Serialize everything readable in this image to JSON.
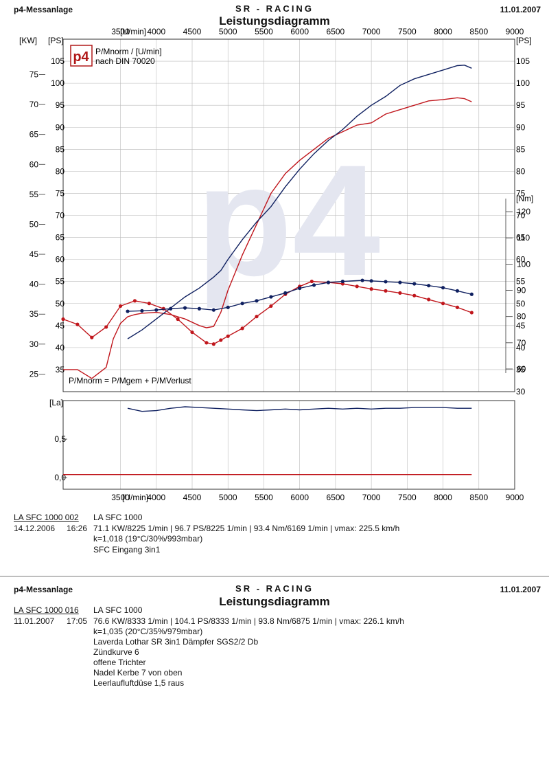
{
  "page": {
    "header_left": "p4-Messanlage",
    "header_center": "SR - RACING",
    "title": "Leistungsdiagramm",
    "date": "11.01.2007",
    "logo_text": "p4",
    "bg_watermark": "p4"
  },
  "chart_labels": {
    "unit_kw": "[KW]",
    "unit_ps_left": "[PS]",
    "unit_ps_right": "[PS]",
    "unit_rpm_top": "[U/min]",
    "unit_rpm_bottom": "[U/min]",
    "unit_nm": "[Nm]",
    "unit_la": "[La]",
    "legend_line1": "P/Mnorm / [U/min]",
    "legend_line2": "nach DIN 70020",
    "formula": "P/Mnorm = P/Mgem + P/MVerlust"
  },
  "runs": [
    {
      "id": "LA SFC 1000 002",
      "name": "LA SFC 1000",
      "date": "14.12.2006",
      "time": "16:26",
      "summary": "71.1 KW/8225 1/min  |  96.7 PS/8225 1/min  |  93.4 Nm/6169 1/min | vmax: 225.5 km/h",
      "k": "k=1,018 (19°C/30%/993mbar)",
      "notes": [
        "SFC Eingang 3in1"
      ]
    },
    {
      "id": "LA SFC 1000 016",
      "name": "LA SFC 1000",
      "date": "11.01.2007",
      "time": "17:05",
      "summary": "76.6 KW/8333 1/min  |  104.1 PS/8333 1/min  |  93.8 Nm/6875 1/min | vmax: 226.1 km/h",
      "k": "k=1,035 (20°C/35%/979mbar)",
      "notes": [
        "Laverda Lothar SR 3in1 Dämpfer SGS2/2 Db",
        "Zündkurve 6",
        "offene Trichter",
        "Nadel Kerbe 7 von oben",
        "Leerlaufluftdüse 1,5 raus"
      ]
    }
  ],
  "colors": {
    "run_2006": "#c0161c",
    "run_2007": "#0f2060",
    "grid": "#bbbbbb",
    "axis": "#333333"
  },
  "chart_data": [
    {
      "type": "line",
      "title": "Leistungsdiagramm",
      "xlabel": "[U/min]",
      "x_ticks": [
        3500,
        4000,
        4500,
        5000,
        5500,
        6000,
        6500,
        7000,
        7500,
        8000,
        8500,
        9000
      ],
      "xlim": [
        2700,
        9000
      ],
      "y_axes": {
        "kw": {
          "label": "[KW]",
          "ticks": [
            25,
            30,
            35,
            40,
            45,
            50,
            55,
            60,
            65,
            70,
            75
          ]
        },
        "ps": {
          "label": "[PS]",
          "ticks": [
            35,
            40,
            45,
            50,
            55,
            60,
            65,
            70,
            75,
            80,
            85,
            90,
            95,
            100,
            105
          ],
          "ylim": [
            30,
            110
          ]
        },
        "nm": {
          "label": "[Nm]",
          "ticks": [
            60,
            70,
            80,
            90,
            100,
            110,
            120
          ]
        }
      },
      "grid": true,
      "series": [
        {
          "name": "LA SFC 1000 002",
          "quantity": "power",
          "unit": "PS",
          "x": [
            2700,
            2900,
            3100,
            3300,
            3400,
            3500,
            3600,
            3700,
            3800,
            4000,
            4200,
            4400,
            4600,
            4700,
            4800,
            4900,
            5000,
            5200,
            5400,
            5600,
            5800,
            6000,
            6200,
            6400,
            6600,
            6800,
            7000,
            7200,
            7400,
            7600,
            7800,
            8000,
            8200,
            8300,
            8400
          ],
          "y": [
            35,
            35,
            33,
            35.5,
            42,
            45.5,
            47,
            47.5,
            47.8,
            48,
            47.5,
            46.5,
            45,
            44.5,
            44.8,
            48,
            53,
            61,
            68,
            75,
            79.5,
            82.5,
            85,
            87.5,
            89,
            90.5,
            91,
            93,
            94,
            95,
            96,
            96.3,
            96.7,
            96.5,
            95.8
          ]
        },
        {
          "name": "LA SFC 1000 016",
          "quantity": "power",
          "unit": "PS",
          "x": [
            3600,
            3800,
            4000,
            4200,
            4400,
            4600,
            4800,
            4900,
            5000,
            5200,
            5400,
            5600,
            5800,
            6000,
            6200,
            6400,
            6600,
            6800,
            7000,
            7200,
            7400,
            7600,
            7800,
            8000,
            8200,
            8300,
            8400
          ],
          "y": [
            42,
            44,
            46.5,
            49,
            51.5,
            53.5,
            56,
            57.5,
            60,
            64.5,
            68.5,
            72,
            76.5,
            80.5,
            84,
            87,
            89.5,
            92.5,
            95,
            97,
            99.5,
            101,
            102,
            103,
            104,
            104.1,
            103.4
          ]
        },
        {
          "name": "LA SFC 1000 002",
          "quantity": "torque",
          "unit": "Nm",
          "x": [
            2700,
            2900,
            3100,
            3300,
            3500,
            3700,
            3900,
            4100,
            4300,
            4500,
            4700,
            4800,
            4900,
            5000,
            5200,
            5400,
            5600,
            5800,
            6000,
            6169,
            6400,
            6600,
            6800,
            7000,
            7200,
            7400,
            7600,
            7800,
            8000,
            8200,
            8400
          ],
          "y": [
            79,
            77,
            72,
            76,
            84,
            86,
            85,
            83,
            79,
            74,
            70,
            69.5,
            71,
            72.5,
            75.5,
            80,
            84,
            88.5,
            91.5,
            93.4,
            93,
            92.5,
            91.5,
            90.5,
            89.8,
            89,
            88,
            86.5,
            85,
            83.5,
            81.5
          ]
        },
        {
          "name": "LA SFC 1000 016",
          "quantity": "torque",
          "unit": "Nm",
          "x": [
            3600,
            3800,
            4000,
            4200,
            4400,
            4600,
            4800,
            5000,
            5200,
            5400,
            5600,
            5800,
            6000,
            6200,
            6400,
            6600,
            6875,
            7000,
            7200,
            7400,
            7600,
            7800,
            8000,
            8200,
            8400
          ],
          "y": [
            82,
            82.2,
            82.5,
            83,
            83.3,
            83,
            82.5,
            83.5,
            85,
            86,
            87.5,
            89,
            90.8,
            92,
            93,
            93.4,
            93.8,
            93.6,
            93.3,
            93,
            92.5,
            91.8,
            91,
            89.8,
            88.5
          ]
        }
      ]
    },
    {
      "type": "line",
      "xlabel": "[U/min]",
      "ylabel": "[La]",
      "x_ticks": [
        3500,
        4000,
        4500,
        5000,
        5500,
        6000,
        6500,
        7000,
        7500,
        8000,
        8500,
        9000
      ],
      "xlim": [
        2700,
        9000
      ],
      "y_ticks": [
        "0,0",
        "0,5"
      ],
      "ylim": [
        -0.15,
        1.0
      ],
      "series": [
        {
          "name": "LA SFC 1000 016",
          "quantity": "lambda",
          "x": [
            3600,
            3800,
            4000,
            4200,
            4400,
            4600,
            4800,
            5000,
            5200,
            5400,
            5600,
            5800,
            6000,
            6200,
            6400,
            6600,
            6800,
            7000,
            7200,
            7400,
            7600,
            7800,
            8000,
            8200,
            8400
          ],
          "y": [
            0.9,
            0.86,
            0.87,
            0.9,
            0.92,
            0.91,
            0.9,
            0.89,
            0.88,
            0.87,
            0.88,
            0.89,
            0.88,
            0.89,
            0.9,
            0.89,
            0.9,
            0.89,
            0.9,
            0.9,
            0.91,
            0.91,
            0.91,
            0.9,
            0.9
          ]
        },
        {
          "name": "LA SFC 1000 002",
          "quantity": "lambda",
          "x": [
            2700,
            8400
          ],
          "y": [
            0.04,
            0.04
          ]
        }
      ]
    }
  ]
}
